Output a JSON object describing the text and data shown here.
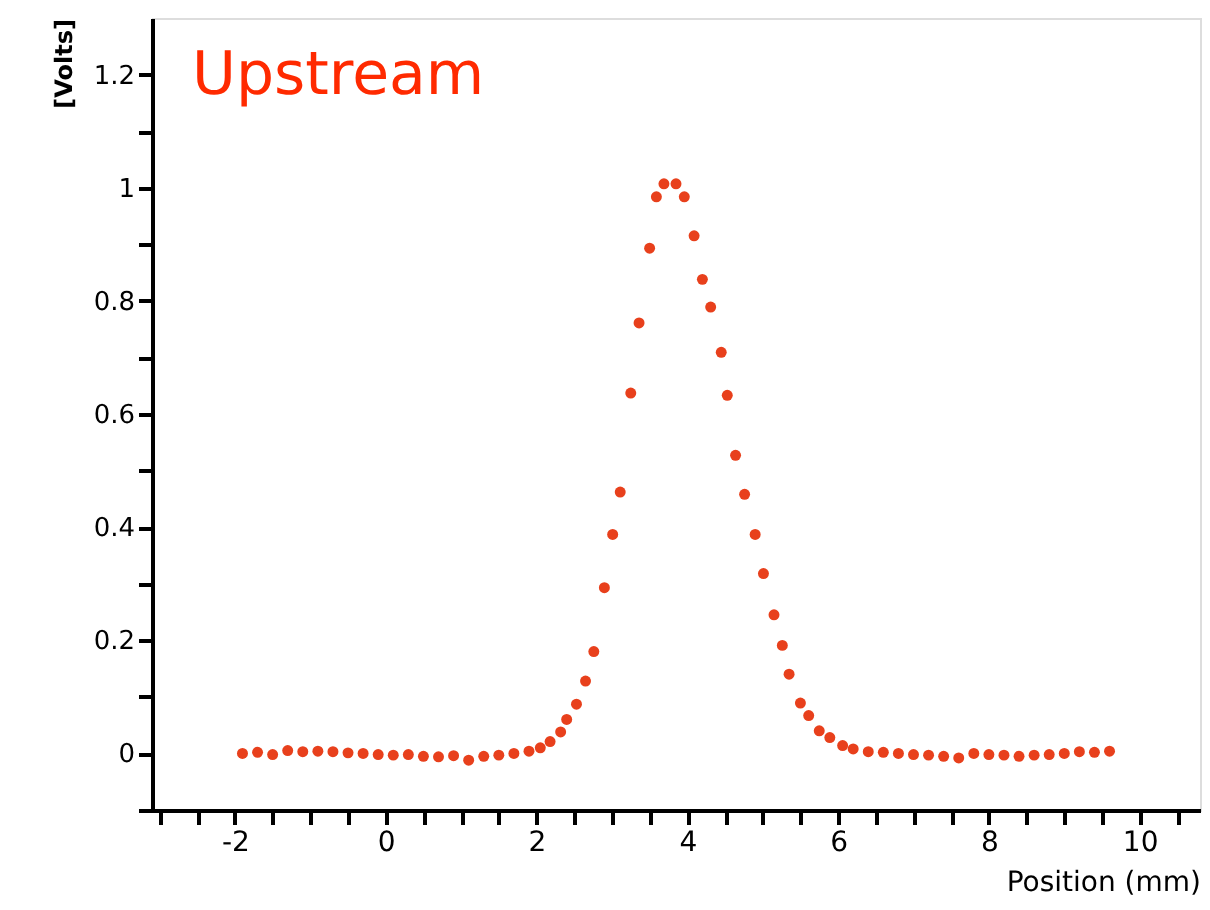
{
  "chart_data": {
    "type": "scatter",
    "xlabel": "Position (mm)",
    "ylabel": "[Volts]",
    "annotations": [
      "Upstream"
    ],
    "xlim": [
      -3.1,
      10.8
    ],
    "ylim": [
      -0.1,
      1.3
    ],
    "xticks": [
      {
        "value": -3,
        "label": null
      },
      {
        "value": -2.5,
        "label": null
      },
      -2,
      {
        "value": -1.5,
        "label": null
      },
      {
        "value": -1,
        "label": null
      },
      {
        "value": -0.5,
        "label": null
      },
      0,
      {
        "value": 0.5,
        "label": null
      },
      {
        "value": 1,
        "label": null
      },
      {
        "value": 1.5,
        "label": null
      },
      2,
      {
        "value": 2.5,
        "label": null
      },
      {
        "value": 3,
        "label": null
      },
      {
        "value": 3.5,
        "label": null
      },
      4,
      {
        "value": 4.5,
        "label": null
      },
      {
        "value": 5,
        "label": null
      },
      {
        "value": 5.5,
        "label": null
      },
      6,
      {
        "value": 6.5,
        "label": null
      },
      {
        "value": 7,
        "label": null
      },
      {
        "value": 7.5,
        "label": null
      },
      8,
      {
        "value": 8.5,
        "label": null
      },
      {
        "value": 9,
        "label": null
      },
      {
        "value": 9.5,
        "label": null
      },
      10,
      {
        "value": 10.5,
        "label": null
      }
    ],
    "yticks": [
      {
        "value": -0.1,
        "label": null
      },
      0,
      {
        "value": 0.1,
        "label": null
      },
      0.2,
      {
        "value": 0.3,
        "label": null
      },
      0.4,
      {
        "value": 0.5,
        "label": null
      },
      0.6,
      {
        "value": 0.7,
        "label": null
      },
      0.8,
      {
        "value": 0.9,
        "label": null
      },
      1,
      {
        "value": 1.1,
        "label": null
      },
      1.2
    ],
    "grid": false,
    "marker": "circle",
    "series": [
      {
        "color": "#e8401c",
        "x": [
          -1.9,
          -1.7,
          -1.5,
          -1.3,
          -1.1,
          -0.9,
          -0.7,
          -0.5,
          -0.3,
          -0.1,
          0.1,
          0.3,
          0.5,
          0.7,
          0.9,
          1.1,
          1.3,
          1.5,
          1.7,
          1.9,
          2.05,
          2.18,
          2.32,
          2.4,
          2.53,
          2.65,
          2.76,
          2.9,
          3.01,
          3.11,
          3.25,
          3.36,
          3.5,
          3.59,
          3.69,
          3.85,
          3.96,
          4.09,
          4.2,
          4.31,
          4.45,
          4.53,
          4.64,
          4.76,
          4.9,
          5.01,
          5.15,
          5.26,
          5.35,
          5.5,
          5.61,
          5.75,
          5.89,
          6.06,
          6.2,
          6.4,
          6.6,
          6.8,
          7.0,
          7.2,
          7.4,
          7.6,
          7.8,
          8.0,
          8.2,
          8.4,
          8.6,
          8.8,
          9.0,
          9.2,
          9.4,
          9.6
        ],
        "values": [
          0.0,
          0.002,
          -0.002,
          0.005,
          0.003,
          0.004,
          0.003,
          0.001,
          0.0,
          -0.002,
          -0.003,
          -0.002,
          -0.005,
          -0.006,
          -0.004,
          -0.012,
          -0.005,
          -0.003,
          0.0,
          0.004,
          0.01,
          0.021,
          0.038,
          0.06,
          0.087,
          0.128,
          0.18,
          0.293,
          0.387,
          0.462,
          0.637,
          0.761,
          0.893,
          0.984,
          1.007,
          1.007,
          0.984,
          0.915,
          0.838,
          0.789,
          0.709,
          0.633,
          0.527,
          0.458,
          0.387,
          0.318,
          0.245,
          0.191,
          0.14,
          0.089,
          0.067,
          0.04,
          0.028,
          0.014,
          0.008,
          0.003,
          0.002,
          0.0,
          -0.002,
          -0.003,
          -0.005,
          -0.008,
          0.0,
          -0.002,
          -0.003,
          -0.005,
          -0.003,
          -0.002,
          0.0,
          0.003,
          0.002,
          0.004
        ]
      }
    ]
  }
}
